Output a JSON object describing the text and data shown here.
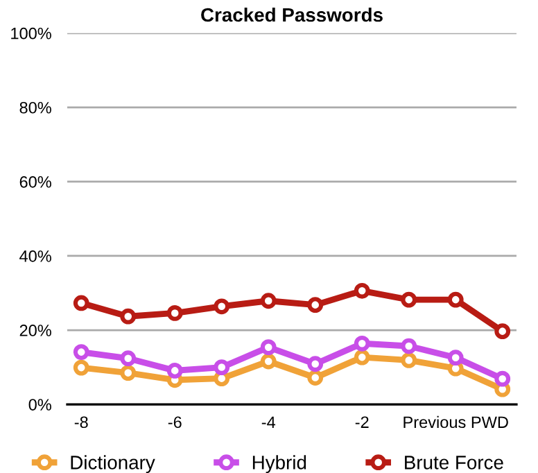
{
  "chart_data": {
    "type": "line",
    "title": "Cracked Passwords",
    "categories": [
      "-8",
      null,
      "-6",
      null,
      "-4",
      null,
      "-2",
      null,
      "Previous PWD",
      null
    ],
    "series": [
      {
        "name": "Dictionary",
        "color": "#f0a238",
        "values": [
          9.9,
          8.5,
          6.6,
          7.0,
          11.6,
          7.2,
          12.7,
          11.9,
          9.7,
          4.1
        ]
      },
      {
        "name": "Hybrid",
        "color": "#c84ee8",
        "values": [
          14.1,
          12.4,
          9.1,
          10.0,
          15.4,
          10.9,
          16.4,
          15.7,
          12.6,
          6.9
        ]
      },
      {
        "name": "Brute Force",
        "color": "#b81c14",
        "values": [
          27.3,
          23.7,
          24.6,
          26.4,
          27.9,
          26.8,
          30.6,
          28.2,
          28.2,
          19.7
        ]
      }
    ],
    "ylim": [
      0,
      100
    ],
    "yticks": [
      {
        "value": 0,
        "label": "0%"
      },
      {
        "value": 20,
        "label": "20%"
      },
      {
        "value": 40,
        "label": "40%"
      },
      {
        "value": 60,
        "label": "60%"
      },
      {
        "value": 80,
        "label": "80%"
      },
      {
        "value": 100,
        "label": "100%"
      }
    ],
    "grid": "y",
    "legend": "bottom",
    "marker": "circle",
    "line_style": "solid"
  }
}
